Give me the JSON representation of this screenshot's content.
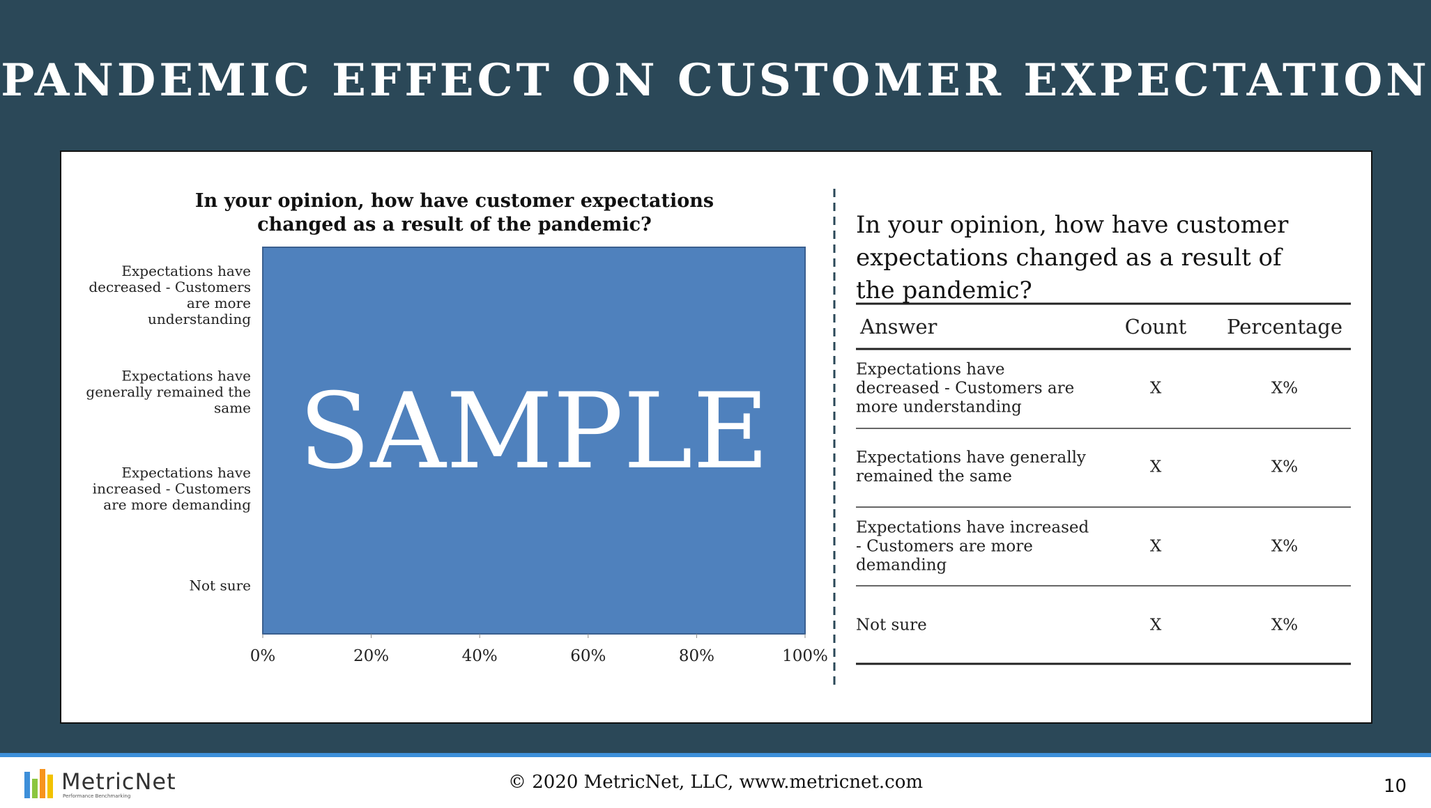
{
  "header": {
    "title": "PANDEMIC EFFECT ON CUSTOMER EXPECTATION"
  },
  "chart_data": {
    "type": "bar",
    "orientation": "horizontal",
    "title": "In your opinion, how have customer expectations changed as a result of the pandemic?",
    "categories": [
      "Expectations have decreased - Customers are more understanding",
      "Expectations have generally remained the same",
      "Expectations have increased - Customers are more demanding",
      "Not sure"
    ],
    "plot_color": "#4f81bd",
    "watermark": "SAMPLE",
    "xlim": [
      0,
      100
    ],
    "xticks": [
      {
        "value": 0,
        "label": "0%"
      },
      {
        "value": 20,
        "label": "20%"
      },
      {
        "value": 40,
        "label": "40%"
      },
      {
        "value": 60,
        "label": "60%"
      },
      {
        "value": 80,
        "label": "80%"
      },
      {
        "value": 100,
        "label": "100%"
      }
    ]
  },
  "table": {
    "title": "In your opinion, how have customer expectations changed as a result of the pandemic?",
    "columns": [
      "Answer",
      "Count",
      "Percentage"
    ],
    "rows": [
      [
        "Expectations have decreased - Customers are more understanding",
        "X",
        "X%"
      ],
      [
        "Expectations have generally remained the same",
        "X",
        "X%"
      ],
      [
        "Expectations have increased - Customers are more demanding",
        "X",
        "X%"
      ],
      [
        "Not sure",
        "X",
        "X%"
      ]
    ]
  },
  "footer": {
    "logo": "MetricNet",
    "logo_tagline": "Performance Benchmarking",
    "copyright": "© 2020 MetricNet, LLC, www.metricnet.com",
    "page": "10"
  }
}
